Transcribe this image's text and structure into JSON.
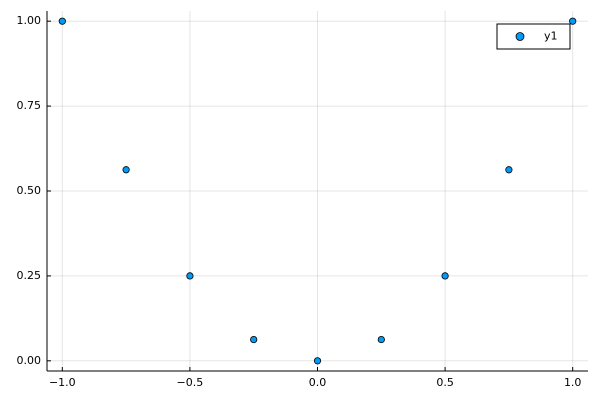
{
  "chart_data": {
    "type": "scatter",
    "x": [
      -1,
      -0.75,
      -0.5,
      -0.25,
      0,
      0.25,
      0.5,
      0.75,
      1
    ],
    "series": [
      {
        "name": "y1",
        "color": "#009af9",
        "values": [
          1,
          0.5625,
          0.25,
          0.0625,
          0,
          0.0625,
          0.25,
          0.5625,
          1
        ]
      }
    ],
    "xlim": [
      -1.06,
      1.06
    ],
    "ylim": [
      -0.03,
      1.03
    ],
    "xticks": [
      {
        "value": -1,
        "label": "−1.0"
      },
      {
        "value": -0.5,
        "label": "−0.5"
      },
      {
        "value": 0,
        "label": "0.0"
      },
      {
        "value": 0.5,
        "label": "0.5"
      },
      {
        "value": 1,
        "label": "1.0"
      }
    ],
    "yticks": [
      {
        "value": 0,
        "label": "0.00"
      },
      {
        "value": 0.25,
        "label": "0.25"
      },
      {
        "value": 0.5,
        "label": "0.50"
      },
      {
        "value": 0.75,
        "label": "0.75"
      },
      {
        "value": 1,
        "label": "1.00"
      }
    ],
    "grid": true,
    "legend": "top-right"
  }
}
